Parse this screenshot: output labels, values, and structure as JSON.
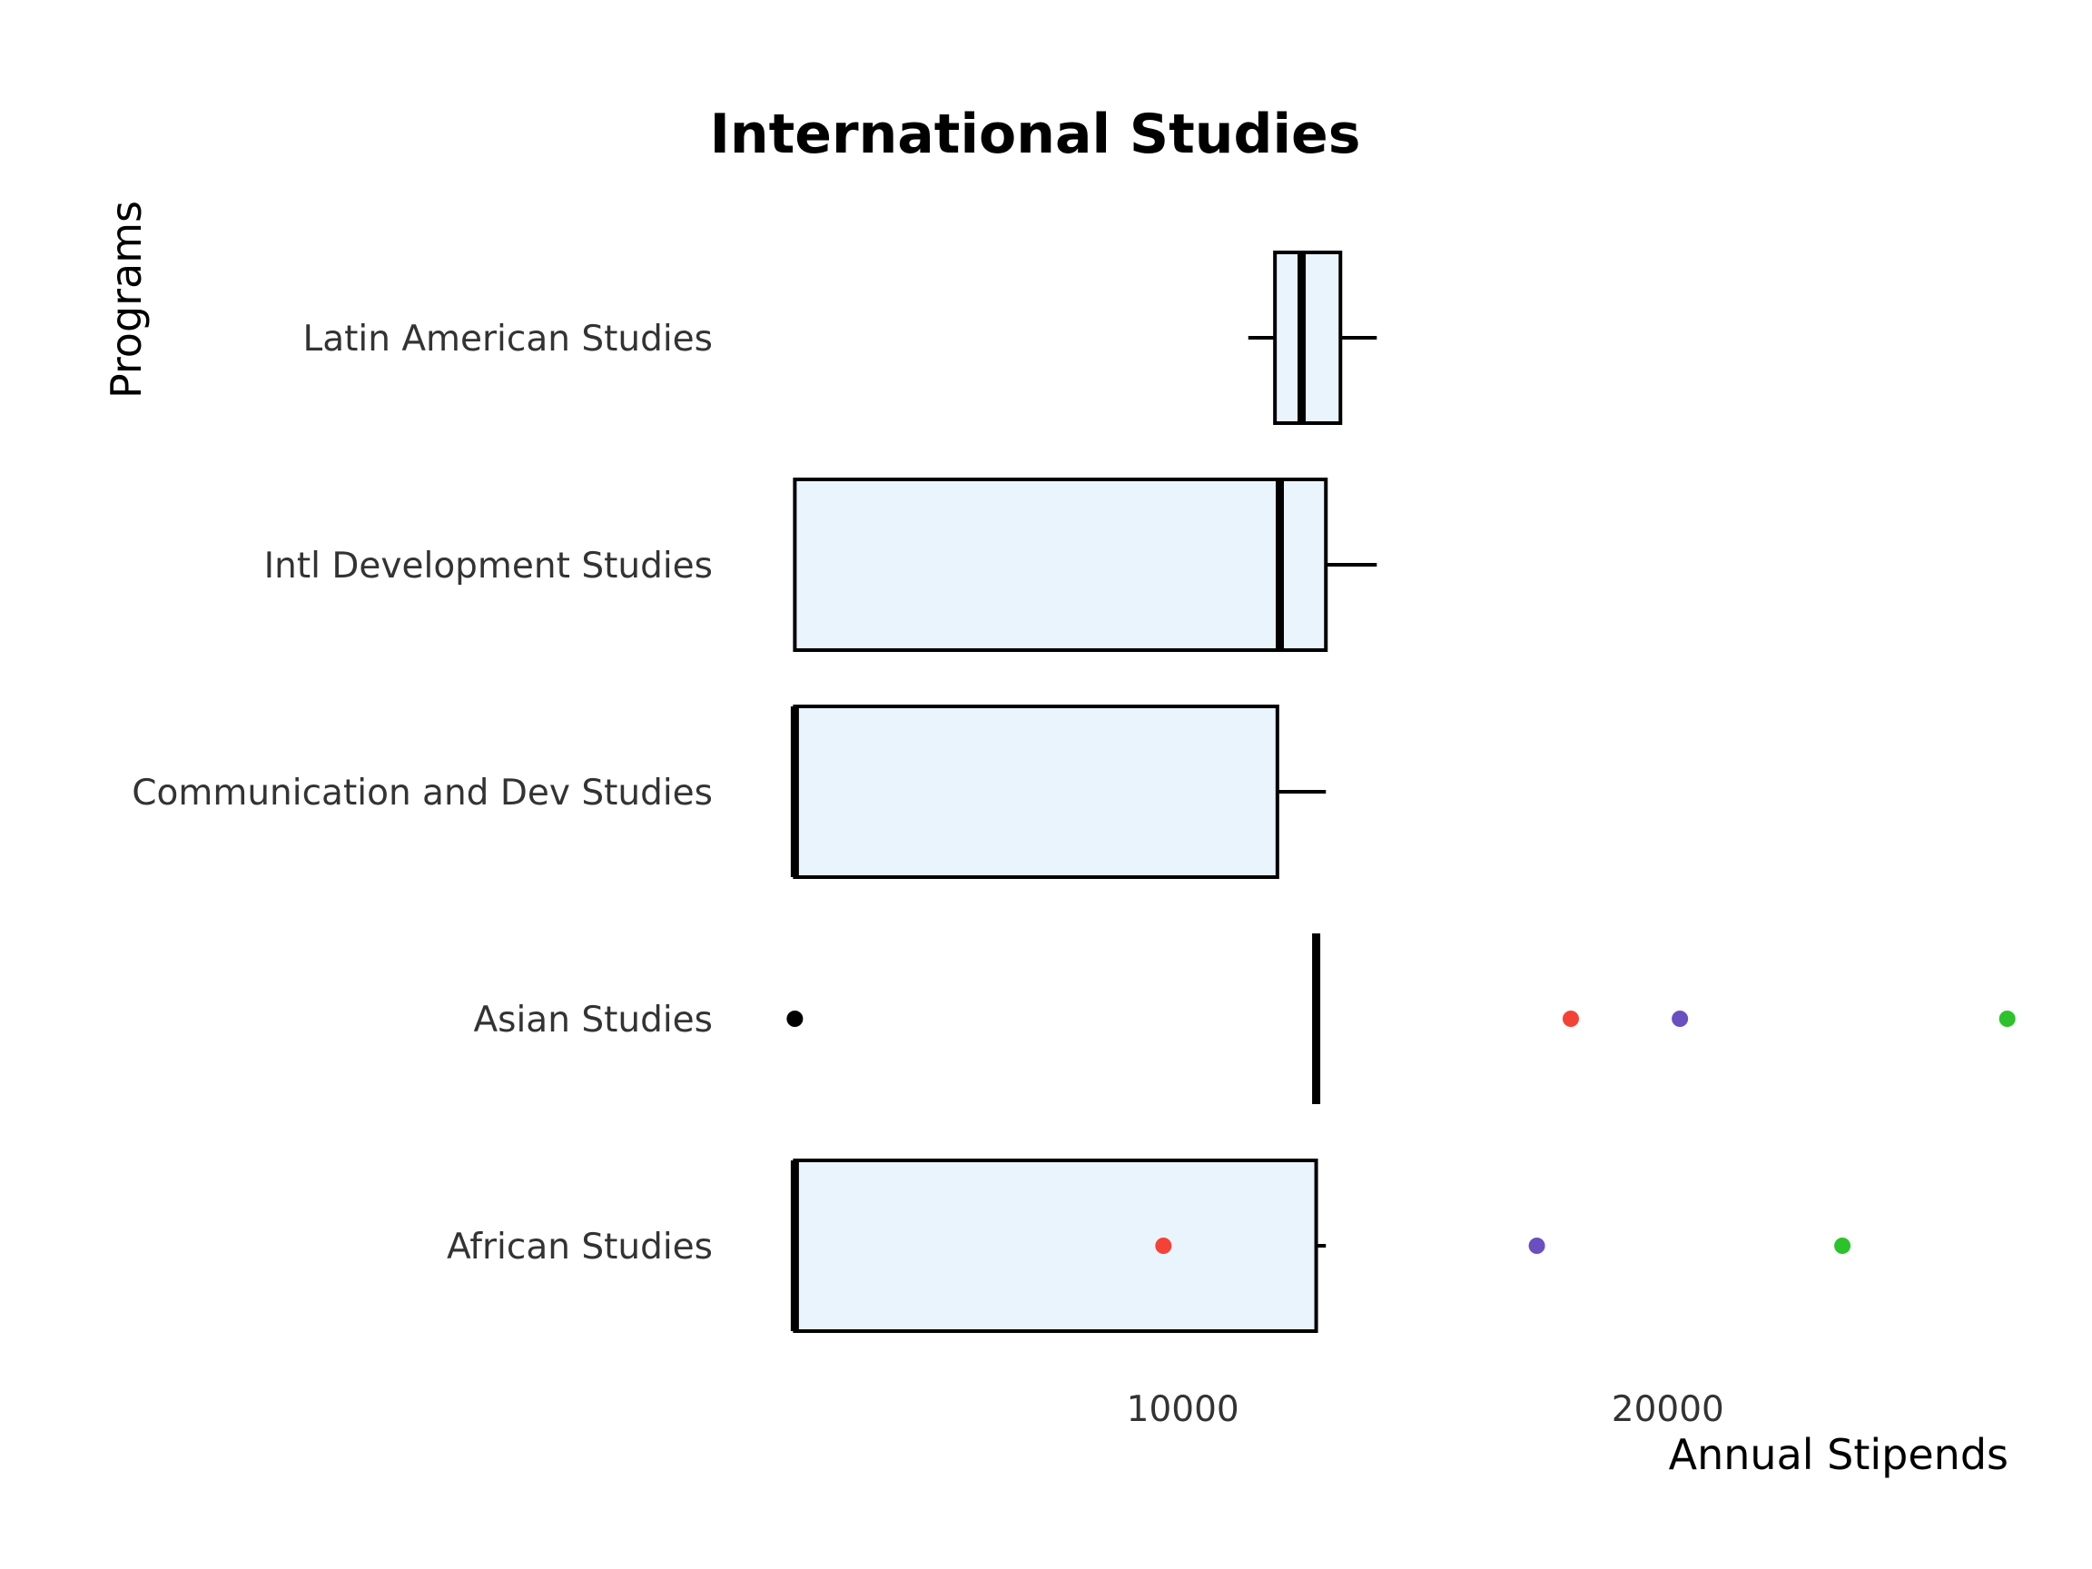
{
  "chart_data": {
    "type": "box",
    "title": "International Studies",
    "xlabel": "Annual Stipends",
    "ylabel": "Programs",
    "xlim": [
      1300,
      26800
    ],
    "xticks": [
      10000,
      20000
    ],
    "xtick_labels": [
      "10000",
      "20000"
    ],
    "orientation": "horizontal",
    "grid": false,
    "box_fill": "#eaf4fd",
    "box_stroke": "#000000",
    "categories": [
      "Latin American Studies",
      "Intl Development Studies",
      "Communication and Dev Studies",
      "Asian Studies",
      "African Studies"
    ],
    "boxes": [
      {
        "category": "Latin American Studies",
        "whisker_low": 11350,
        "q1": 11900,
        "median": 12450,
        "q3": 13250,
        "whisker_high": 14000
      },
      {
        "category": "Intl Development Studies",
        "whisker_low": 2000,
        "q1": 2000,
        "median": 12000,
        "q3": 12950,
        "whisker_high": 14000
      },
      {
        "category": "Communication and Dev Studies",
        "whisker_low": 2000,
        "q1": 2000,
        "median": 2000,
        "q3": 11950,
        "whisker_high": 12950
      },
      {
        "category": "Asian Studies",
        "whisker_low": 12750,
        "q1": 12750,
        "median": 12750,
        "q3": 12750,
        "whisker_high": 12750
      },
      {
        "category": "African Studies",
        "whisker_low": 2000,
        "q1": 2000,
        "median": 2000,
        "q3": 12750,
        "whisker_high": 12950
      }
    ],
    "points": [
      {
        "category": "Asian Studies",
        "value": 2000,
        "color": "#000000"
      },
      {
        "category": "Asian Studies",
        "value": 18000,
        "color": "#f44336"
      },
      {
        "category": "Asian Studies",
        "value": 20250,
        "color": "#6a4fc0"
      },
      {
        "category": "Asian Studies",
        "value": 27000,
        "color": "#2cc22c"
      },
      {
        "category": "African Studies",
        "value": 9600,
        "color": "#f44336"
      },
      {
        "category": "African Studies",
        "value": 17300,
        "color": "#6a4fc0"
      },
      {
        "category": "African Studies",
        "value": 23600,
        "color": "#2cc22c"
      }
    ]
  }
}
